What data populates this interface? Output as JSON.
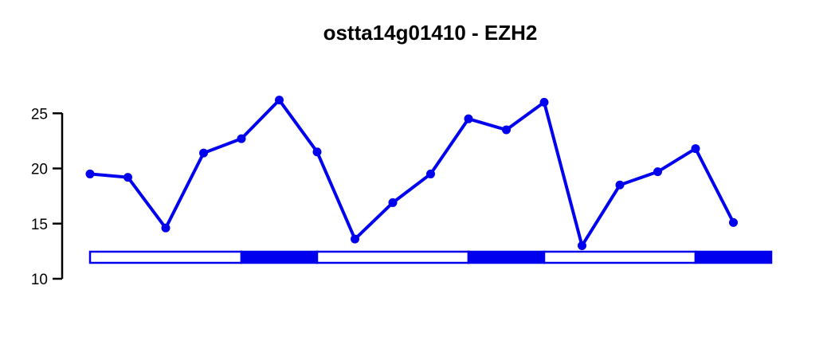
{
  "chart_data": {
    "type": "line",
    "title": "ostta14g01410 - EZH2",
    "xlabel": "",
    "ylabel": "",
    "ylim": [
      10,
      27
    ],
    "yticks": [
      10,
      15,
      20,
      25
    ],
    "grid": false,
    "series_color": "#0000ee",
    "x": [
      1,
      2,
      3,
      4,
      5,
      6,
      7,
      8,
      9,
      10,
      11,
      12,
      13,
      14,
      15,
      16,
      17,
      18
    ],
    "series": [
      {
        "values": [
          19.5,
          19.2,
          14.6,
          21.4,
          22.7,
          26.2,
          21.5,
          13.6,
          16.9,
          19.5,
          24.5,
          23.5,
          26.0,
          13.0,
          18.5,
          19.7,
          21.8,
          15.1
        ]
      }
    ],
    "light_dark_bar": [
      {
        "state": "light",
        "from": 1,
        "to": 5
      },
      {
        "state": "dark",
        "from": 5,
        "to": 7
      },
      {
        "state": "light",
        "from": 7,
        "to": 11
      },
      {
        "state": "dark",
        "from": 11,
        "to": 13
      },
      {
        "state": "light",
        "from": 13,
        "to": 17
      },
      {
        "state": "dark",
        "from": 17,
        "to": 19
      }
    ]
  }
}
